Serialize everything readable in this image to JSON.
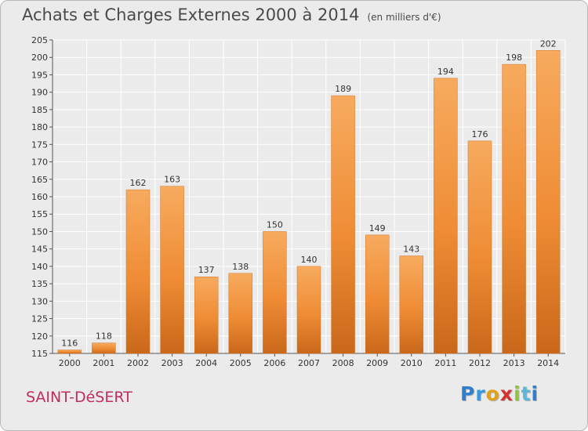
{
  "header": {
    "title": "Achats et Charges Externes 2000 à 2014",
    "subtitle": "(en milliers d'€)"
  },
  "footer": {
    "commune": "SAINT-DéSERT",
    "logo": "Proxiti"
  },
  "colors": {
    "bar": "#ef8c35",
    "bar_light": "#f7ab5e",
    "bar_dark": "#c9681a",
    "axis": "#555555",
    "grid": "#ffffff",
    "commune": "#c02d61"
  },
  "chart_data": {
    "type": "bar",
    "title": "Achats et Charges Externes 2000 à 2014",
    "subtitle": "(en milliers d'€)",
    "xlabel": "",
    "ylabel": "",
    "categories": [
      "2000",
      "2001",
      "2002",
      "2003",
      "2004",
      "2005",
      "2006",
      "2007",
      "2008",
      "2009",
      "2010",
      "2011",
      "2012",
      "2013",
      "2014"
    ],
    "values": [
      116,
      118,
      162,
      163,
      137,
      138,
      150,
      140,
      189,
      149,
      143,
      194,
      176,
      198,
      202
    ],
    "ylim": [
      115,
      205
    ],
    "yticks": [
      115,
      120,
      125,
      130,
      135,
      140,
      145,
      150,
      155,
      160,
      165,
      170,
      175,
      180,
      185,
      190,
      195,
      200,
      205
    ],
    "grid": true,
    "legend": "none",
    "data_labels": true
  }
}
